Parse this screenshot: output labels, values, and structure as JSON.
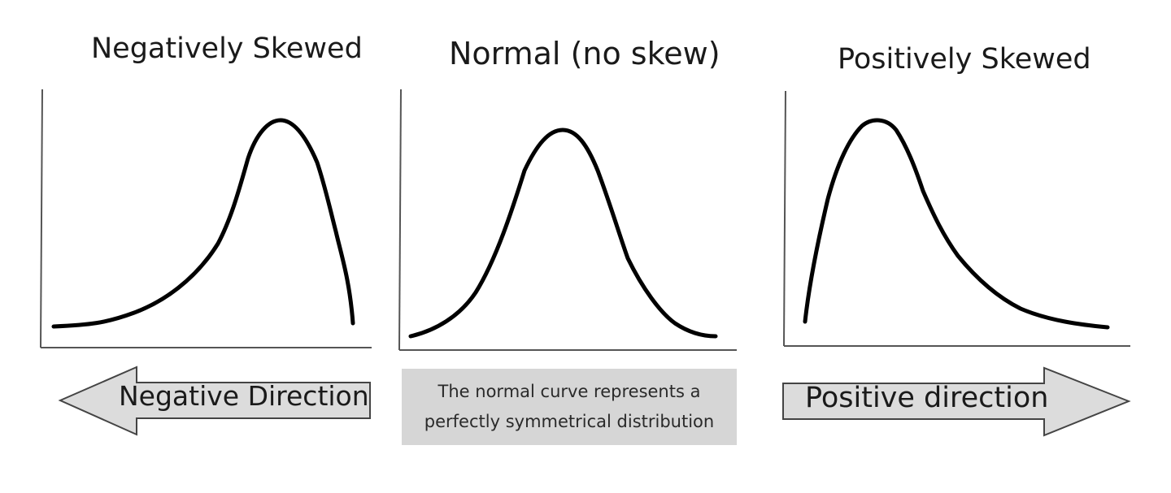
{
  "titles": {
    "negative": "Negatively Skewed",
    "normal": "Normal (no skew)",
    "positive": "Positively Skewed"
  },
  "arrows": {
    "negative_label": "Negative Direction",
    "positive_label": "Positive direction"
  },
  "note": {
    "line1": "The normal curve represents a",
    "line2": "perfectly symmetrical distribution"
  },
  "colors": {
    "curve": "#000000",
    "axis": "#555555",
    "arrow_fill": "#dcdcdc",
    "arrow_stroke": "#444444",
    "note_background": "#d6d6d6"
  }
}
